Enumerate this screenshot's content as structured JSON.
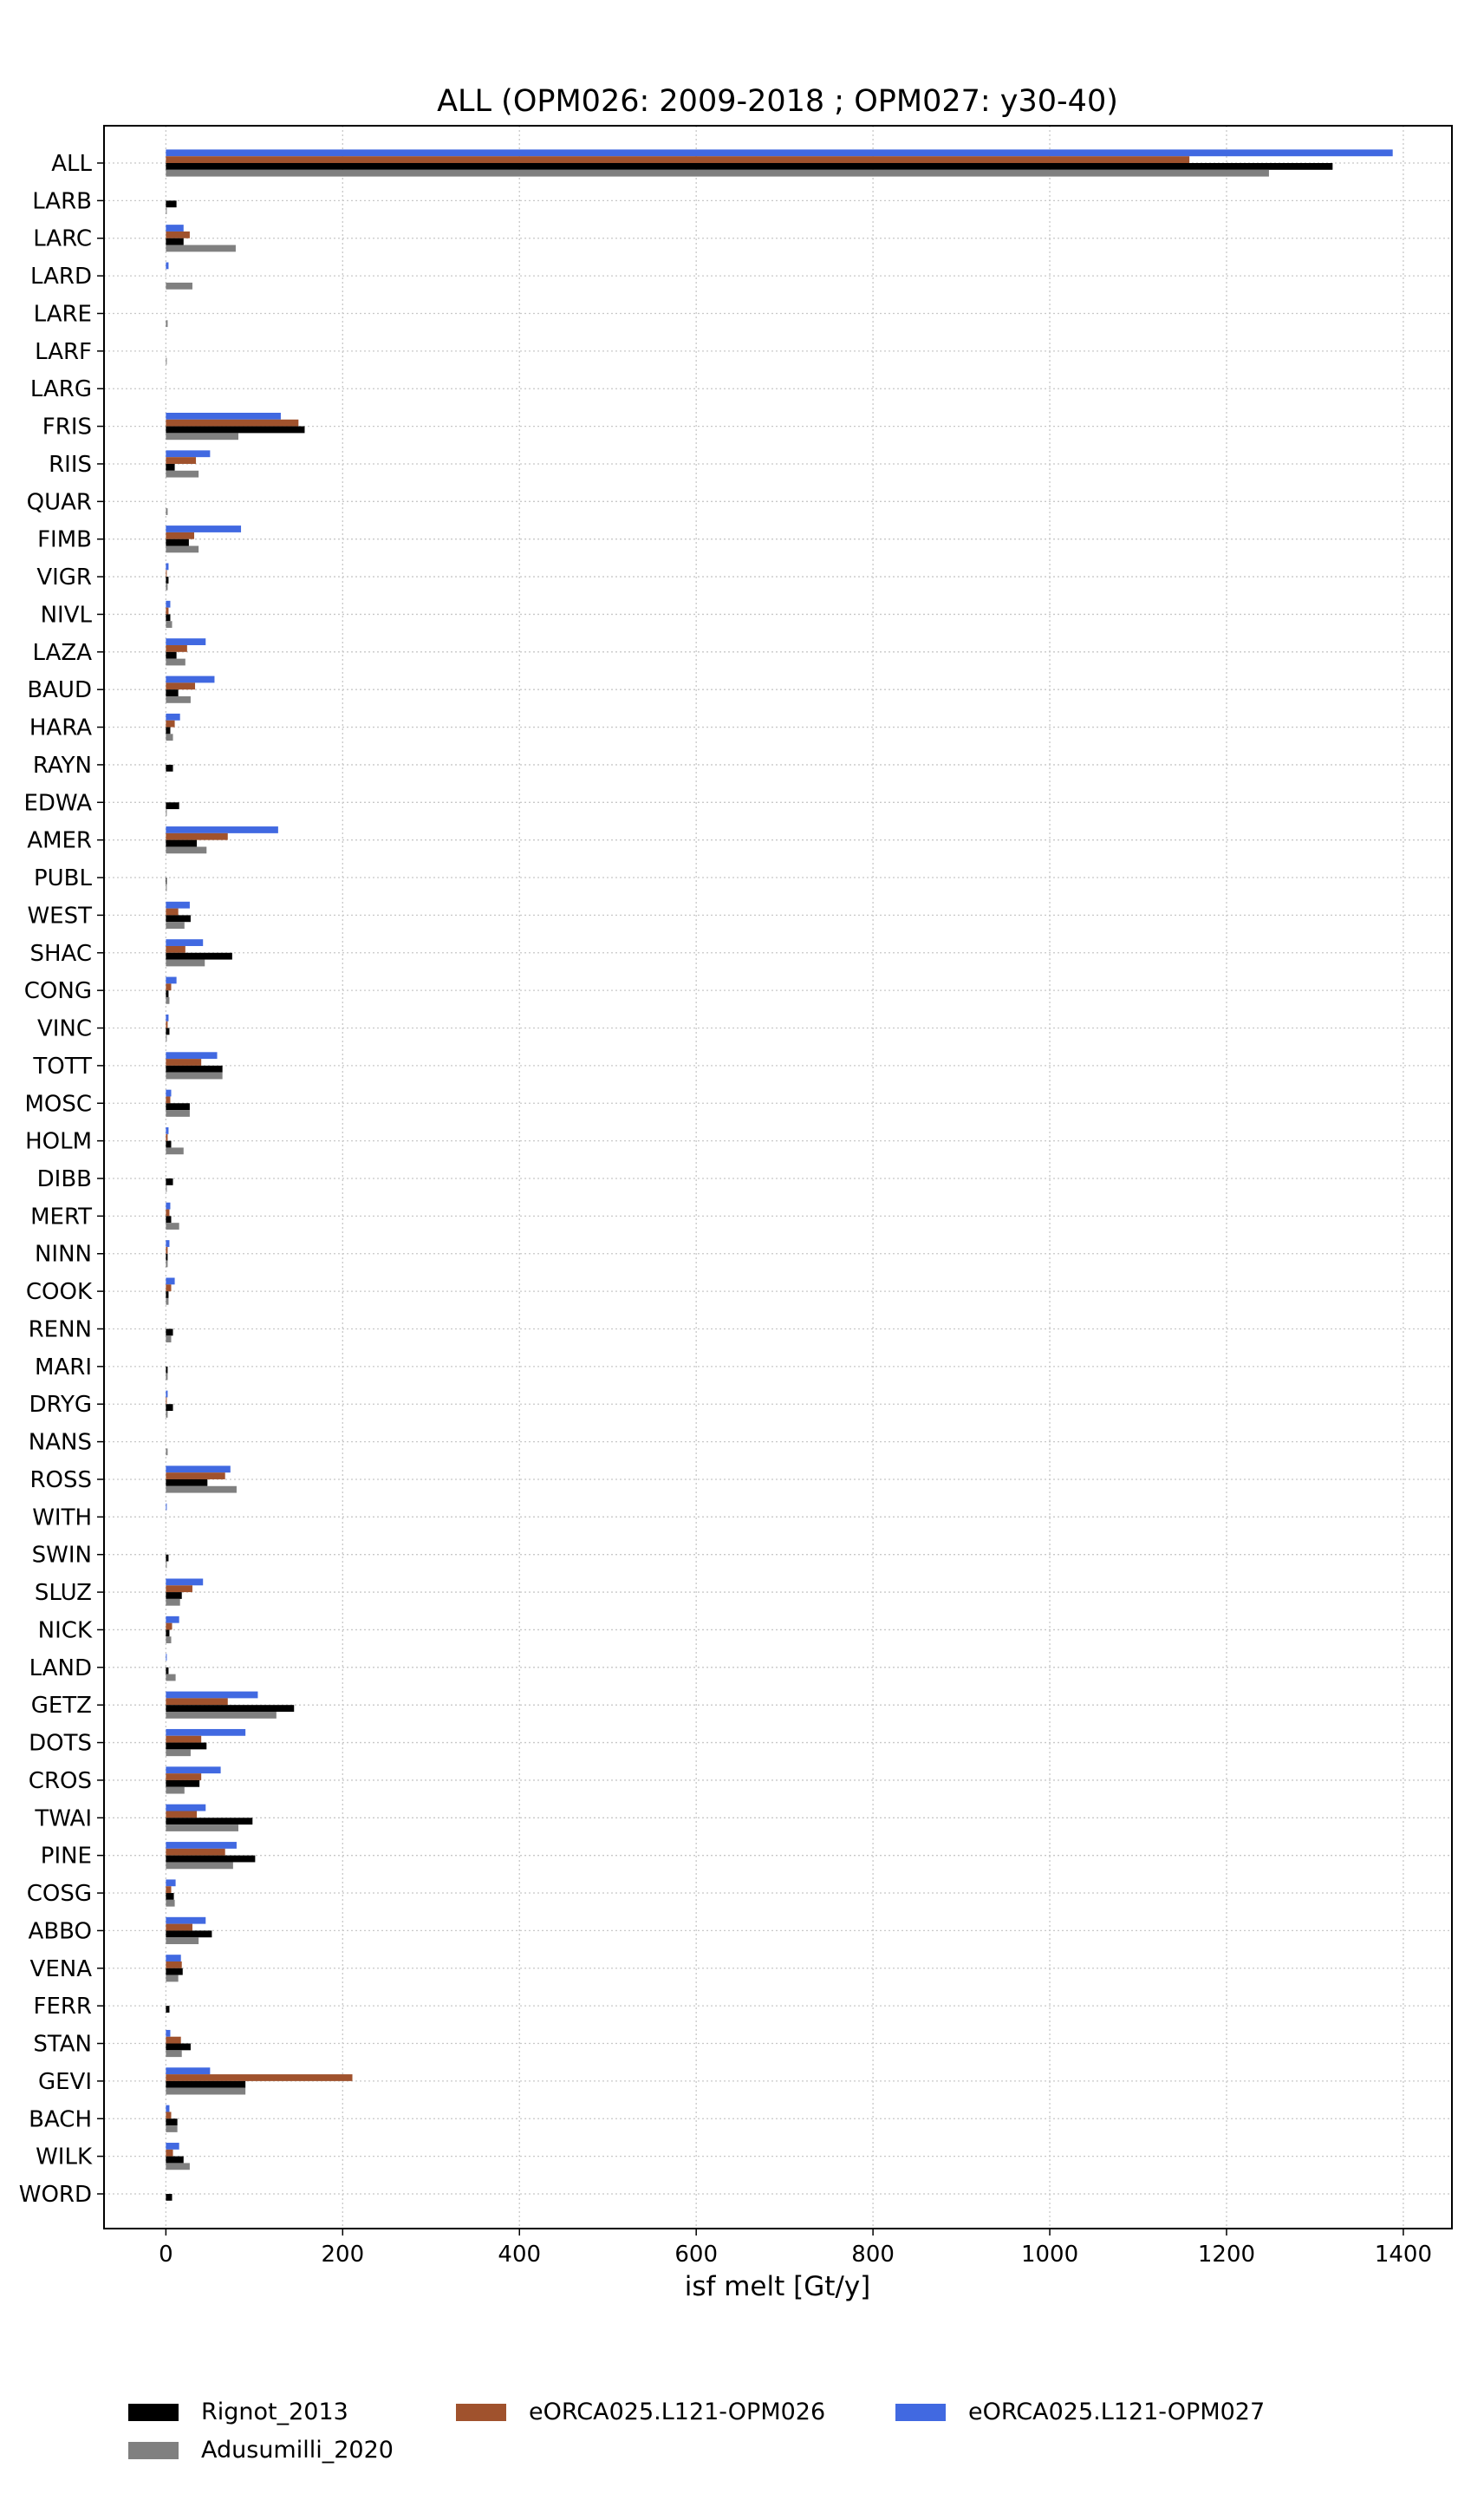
{
  "chart_data": {
    "type": "bar",
    "orientation": "horizontal",
    "title": "ALL (OPM026: 2009-2018 ; OPM027: y30-40)",
    "xlabel": "isf melt [Gt/y]",
    "xlim": [
      -70,
      1455
    ],
    "xticks": [
      0,
      200,
      400,
      600,
      800,
      1000,
      1200,
      1400
    ],
    "grid": true,
    "legend_position": "bottom",
    "categories": [
      "ALL",
      "LARB",
      "LARC",
      "LARD",
      "LARE",
      "LARF",
      "LARG",
      "FRIS",
      "RIIS",
      "QUAR",
      "FIMB",
      "VIGR",
      "NIVL",
      "LAZA",
      "BAUD",
      "HARA",
      "RAYN",
      "EDWA",
      "AMER",
      "PUBL",
      "WEST",
      "SHAC",
      "CONG",
      "VINC",
      "TOTT",
      "MOSC",
      "HOLM",
      "DIBB",
      "MERT",
      "NINN",
      "COOK",
      "RENN",
      "MARI",
      "DRYG",
      "NANS",
      "ROSS",
      "WITH",
      "SWIN",
      "SLUZ",
      "NICK",
      "LAND",
      "GETZ",
      "DOTS",
      "CROS",
      "TWAI",
      "PINE",
      "COSG",
      "ABBO",
      "VENA",
      "FERR",
      "STAN",
      "GEVI",
      "BACH",
      "WILK",
      "WORD"
    ],
    "series": [
      {
        "name": "eORCA025.L121-OPM027",
        "color": "#4169e1",
        "values": [
          1388,
          0,
          20,
          3,
          0,
          0,
          0,
          130,
          50,
          0,
          85,
          3,
          5,
          45,
          55,
          16,
          0,
          0,
          127,
          0,
          27,
          42,
          12,
          3,
          58,
          6,
          3,
          0,
          5,
          4,
          10,
          0,
          0,
          2,
          0,
          73,
          1,
          0,
          42,
          15,
          1,
          104,
          90,
          62,
          45,
          80,
          11,
          45,
          17,
          0,
          5,
          50,
          4,
          15,
          0
        ]
      },
      {
        "name": "eORCA025.L121-OPM026",
        "color": "#a0522d",
        "values": [
          1158,
          0,
          27,
          0,
          0,
          0,
          0,
          150,
          34,
          0,
          32,
          1,
          3,
          24,
          33,
          10,
          0,
          0,
          70,
          0,
          14,
          22,
          6,
          2,
          40,
          5,
          2,
          0,
          4,
          2,
          6,
          0,
          0,
          1,
          0,
          67,
          0,
          0,
          30,
          7,
          0,
          70,
          40,
          40,
          35,
          67,
          6,
          30,
          18,
          0,
          17,
          211,
          6,
          8,
          0
        ]
      },
      {
        "name": "Rignot_2013",
        "color": "#000000",
        "values": [
          1320,
          12,
          20,
          0,
          0,
          0,
          0,
          157,
          10,
          0,
          26,
          3,
          5,
          12,
          14,
          5,
          8,
          15,
          35,
          1,
          28,
          75,
          3,
          4,
          64,
          27,
          6,
          8,
          6,
          2,
          3,
          8,
          2,
          8,
          0,
          47,
          0,
          3,
          18,
          4,
          3,
          145,
          46,
          38,
          98,
          101,
          9,
          52,
          19,
          4,
          28,
          90,
          13,
          20,
          7
        ]
      },
      {
        "name": "Adusumilli_2020",
        "color": "#808080",
        "values": [
          1248,
          1,
          79,
          30,
          2,
          1,
          0,
          82,
          37,
          2,
          37,
          2,
          7,
          22,
          28,
          8,
          0,
          1,
          46,
          1,
          21,
          44,
          4,
          1,
          64,
          27,
          20,
          1,
          15,
          2,
          3,
          6,
          2,
          2,
          2,
          80,
          0,
          1,
          16,
          6,
          11,
          125,
          28,
          21,
          82,
          76,
          10,
          37,
          14,
          0,
          18,
          90,
          13,
          27,
          0
        ]
      }
    ],
    "legend_entries": [
      {
        "label": "Rignot_2013",
        "color": "#000000"
      },
      {
        "label": "eORCA025.L121-OPM026",
        "color": "#a0522d"
      },
      {
        "label": "eORCA025.L121-OPM027",
        "color": "#4169e1"
      },
      {
        "label": "Adusumilli_2020",
        "color": "#808080"
      }
    ]
  }
}
